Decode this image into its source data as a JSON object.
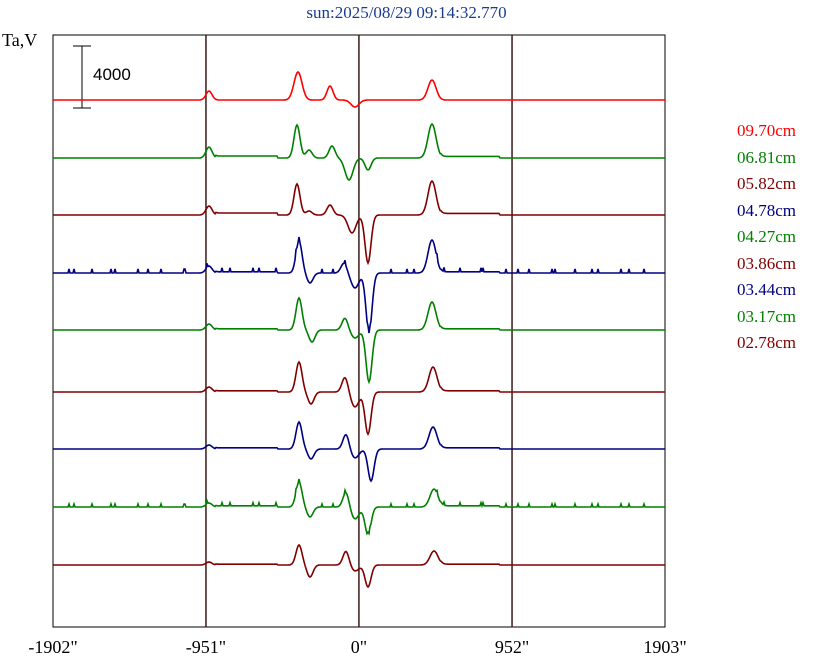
{
  "chart_data": {
    "type": "line",
    "title": "sun:2025/08/29 09:14:32.770",
    "ylabel": "Ta,V",
    "scale_bar_label": "4000",
    "x_ticks": [
      {
        "value": -1902,
        "label": "-1902\""
      },
      {
        "value": -951,
        "label": "-951\""
      },
      {
        "value": 0,
        "label": "0\""
      },
      {
        "value": 952,
        "label": "952\""
      },
      {
        "value": 1903,
        "label": "1903\""
      }
    ],
    "xlim": [
      -1902,
      1903
    ],
    "grid": "vertical lines at -951, 0, 952",
    "legend_placement": "right",
    "series": [
      {
        "name": "09.70cm",
        "color": "#ff0000"
      },
      {
        "name": "06.81cm",
        "color": "#008000"
      },
      {
        "name": "05.82cm",
        "color": "#800000"
      },
      {
        "name": "04.78cm",
        "color": "#000080"
      },
      {
        "name": "04.27cm",
        "color": "#008000"
      },
      {
        "name": "03.86cm",
        "color": "#800000"
      },
      {
        "name": "03.44cm",
        "color": "#000080"
      },
      {
        "name": "03.17cm",
        "color": "#008000"
      },
      {
        "name": "02.78cm",
        "color": "#800000"
      }
    ]
  }
}
